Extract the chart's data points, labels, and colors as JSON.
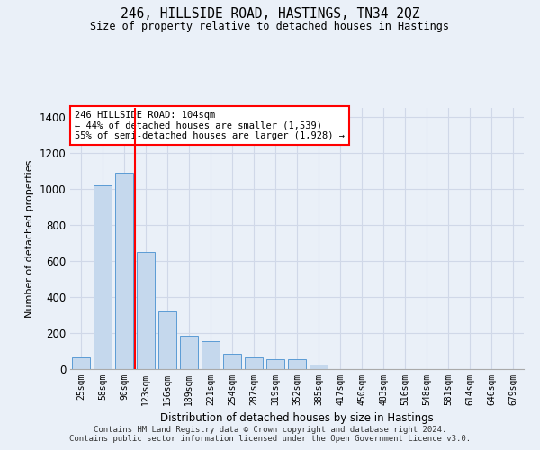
{
  "title": "246, HILLSIDE ROAD, HASTINGS, TN34 2QZ",
  "subtitle": "Size of property relative to detached houses in Hastings",
  "xlabel": "Distribution of detached houses by size in Hastings",
  "ylabel": "Number of detached properties",
  "categories": [
    "25sqm",
    "58sqm",
    "90sqm",
    "123sqm",
    "156sqm",
    "189sqm",
    "221sqm",
    "254sqm",
    "287sqm",
    "319sqm",
    "352sqm",
    "385sqm",
    "417sqm",
    "450sqm",
    "483sqm",
    "516sqm",
    "548sqm",
    "581sqm",
    "614sqm",
    "646sqm",
    "679sqm"
  ],
  "values": [
    65,
    1020,
    1090,
    650,
    320,
    185,
    155,
    85,
    65,
    55,
    55,
    25,
    0,
    0,
    0,
    0,
    0,
    0,
    0,
    0,
    0
  ],
  "bar_color": "#c5d8ed",
  "bar_edge_color": "#5b9bd5",
  "grid_color": "#d0d8e8",
  "background_color": "#eaf0f8",
  "annotation_text": "246 HILLSIDE ROAD: 104sqm\n← 44% of detached houses are smaller (1,539)\n55% of semi-detached houses are larger (1,928) →",
  "ann_box_color": "white",
  "ann_edge_color": "red",
  "vline_x": 2.5,
  "vline_color": "red",
  "ylim": [
    0,
    1450
  ],
  "yticks": [
    0,
    200,
    400,
    600,
    800,
    1000,
    1200,
    1400
  ],
  "footer_line1": "Contains HM Land Registry data © Crown copyright and database right 2024.",
  "footer_line2": "Contains public sector information licensed under the Open Government Licence v3.0."
}
